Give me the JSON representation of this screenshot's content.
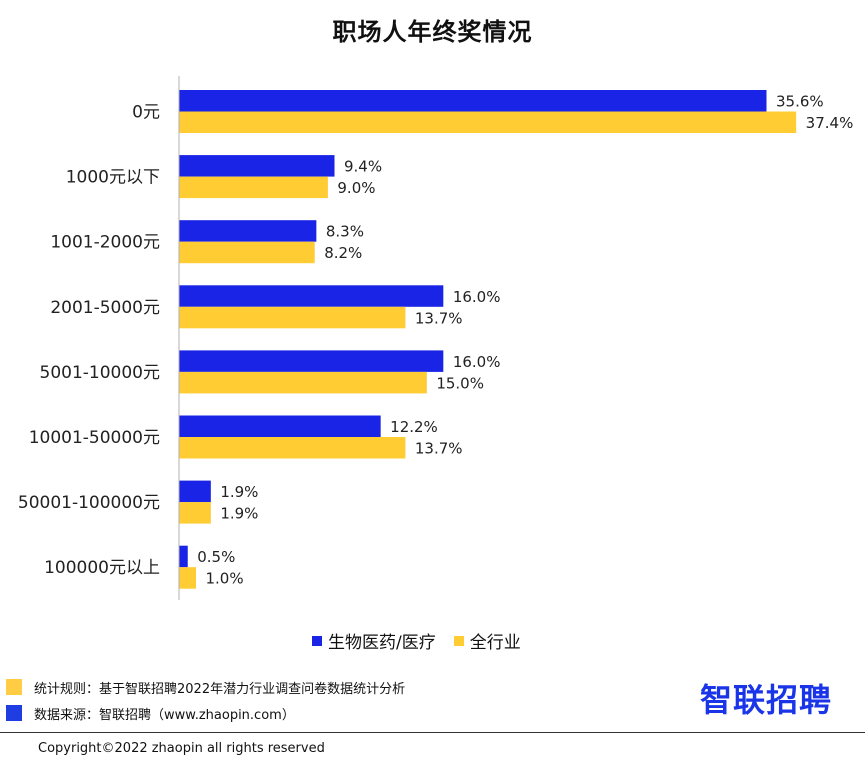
{
  "chart_data": {
    "type": "bar",
    "orientation": "horizontal",
    "title": "职场人年终奖情况",
    "categories": [
      "0元",
      "1000元以下",
      "1001-2000元",
      "2001-5000元",
      "5001-10000元",
      "10001-50000元",
      "50001-100000元",
      "100000元以上"
    ],
    "series": [
      {
        "name": "生物医药/医疗",
        "color": "#1a24e6",
        "values": [
          35.6,
          9.4,
          8.3,
          16.0,
          16.0,
          12.2,
          1.9,
          0.5
        ],
        "labels": [
          "35.6%",
          "9.4%",
          "8.3%",
          "16.0%",
          "16.0%",
          "12.2%",
          "1.9%",
          "0.5%"
        ]
      },
      {
        "name": "全行业",
        "color": "#ffcc33",
        "values": [
          37.4,
          9.0,
          8.2,
          13.7,
          15.0,
          13.7,
          1.9,
          1.0
        ],
        "labels": [
          "37.4%",
          "9.0%",
          "8.2%",
          "13.7%",
          "15.0%",
          "13.7%",
          "1.9%",
          "1.0%"
        ]
      }
    ],
    "xlim": [
      0,
      40
    ],
    "unit": "%",
    "grid": false,
    "legend": "bottom"
  },
  "notes": {
    "rules": "统计规则：基于智联招聘2022年潜力行业调查问卷数据统计分析",
    "source": "数据来源：智联招聘（www.zhaopin.com）",
    "rules_color": "#ffcc44",
    "source_color": "#1f3de0"
  },
  "brand": "智联招聘",
  "copyright": "Copyright©2022 zhaopin all rights reserved"
}
